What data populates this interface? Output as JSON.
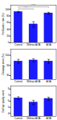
{
  "chart_data": [
    {
      "type": "bar",
      "ylabel": "Fertilization rate (%)",
      "categories": [
        "Control",
        "Without AOA",
        "AOA"
      ],
      "values": [
        92,
        55,
        88
      ],
      "errors": [
        2,
        8,
        3
      ],
      "color": "#1a1aff",
      "ylim": [
        0,
        112
      ],
      "yticks": [
        0,
        20,
        40,
        60,
        80,
        100
      ],
      "annotations": [
        {
          "x1": "Control",
          "x2": "Without AOA",
          "y": 101,
          "label": "***"
        },
        {
          "x1": "Control",
          "x2": "AOA",
          "y": 107,
          "label": "****"
        }
      ]
    },
    {
      "type": "bar",
      "ylabel": "Cleavage score (%)",
      "categories": [
        "Control",
        "Without AOA",
        "AOA"
      ],
      "values": [
        97,
        97.5,
        97
      ],
      "errors": [
        1.0,
        0.8,
        1.0
      ],
      "color": "#1a1aff",
      "ylim": [
        88,
        103
      ],
      "yticks": [
        90,
        95,
        100
      ]
    },
    {
      "type": "bar",
      "ylabel": "Embryo quality score",
      "categories": [
        "Control",
        "Without AOA",
        "AOA"
      ],
      "values": [
        6.5,
        5.8,
        6.4
      ],
      "errors": [
        0.25,
        0.35,
        0.25
      ],
      "color": "#1a1aff",
      "ylim": [
        3.5,
        8.5
      ],
      "yticks": [
        4,
        5,
        6,
        7,
        8
      ]
    }
  ]
}
